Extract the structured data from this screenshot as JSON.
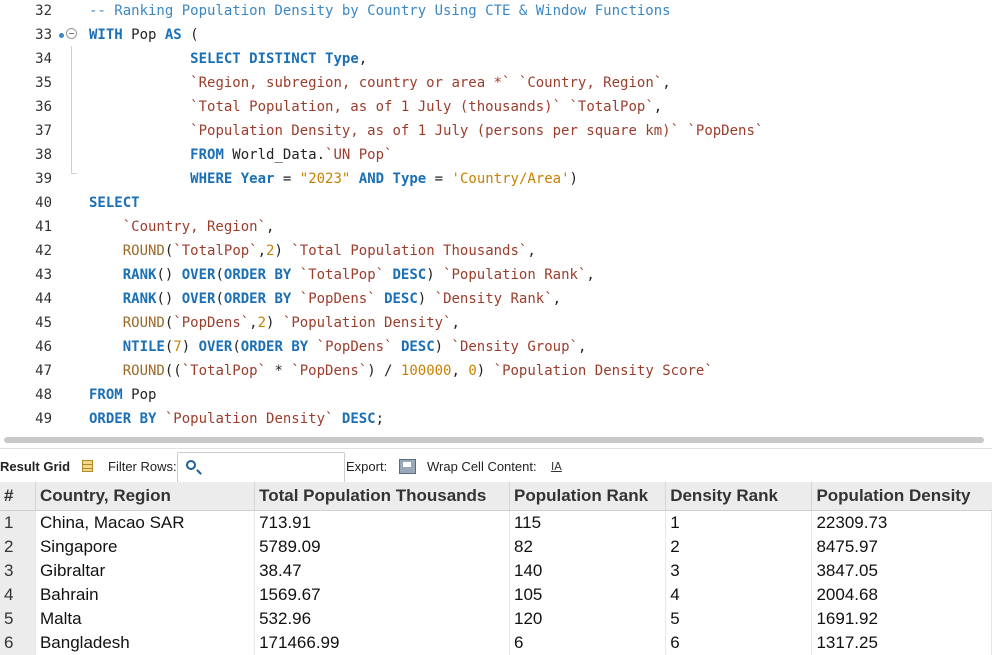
{
  "editor": {
    "lines": [
      {
        "n": "32",
        "tokens": [
          {
            "t": "-- Ranking Population Density by Country Using CTE & Window Functions",
            "c": "cm"
          }
        ]
      },
      {
        "n": "33",
        "tokens": [
          {
            "t": "WITH",
            "c": "kw"
          },
          {
            "t": " Pop ",
            "c": "op"
          },
          {
            "t": "AS",
            "c": "kw"
          },
          {
            "t": " (",
            "c": "op"
          }
        ]
      },
      {
        "n": "34",
        "tokens": [
          {
            "t": "            ",
            "c": "op"
          },
          {
            "t": "SELECT DISTINCT",
            "c": "kw"
          },
          {
            "t": " ",
            "c": "op"
          },
          {
            "t": "Type",
            "c": "kw"
          },
          {
            "t": ",",
            "c": "op"
          }
        ]
      },
      {
        "n": "35",
        "tokens": [
          {
            "t": "            ",
            "c": "op"
          },
          {
            "t": "`Region, subregion, country or area *`",
            "c": "bq"
          },
          {
            "t": " ",
            "c": "op"
          },
          {
            "t": "`Country, Region`",
            "c": "bq"
          },
          {
            "t": ",",
            "c": "op"
          }
        ]
      },
      {
        "n": "36",
        "tokens": [
          {
            "t": "            ",
            "c": "op"
          },
          {
            "t": "`Total Population, as of 1 July (thousands)`",
            "c": "bq"
          },
          {
            "t": " ",
            "c": "op"
          },
          {
            "t": "`TotalPop`",
            "c": "bq"
          },
          {
            "t": ",",
            "c": "op"
          }
        ]
      },
      {
        "n": "37",
        "tokens": [
          {
            "t": "            ",
            "c": "op"
          },
          {
            "t": "`Population Density, as of 1 July (persons per square km)`",
            "c": "bq"
          },
          {
            "t": " ",
            "c": "op"
          },
          {
            "t": "`PopDens`",
            "c": "bq"
          }
        ]
      },
      {
        "n": "38",
        "tokens": [
          {
            "t": "            ",
            "c": "op"
          },
          {
            "t": "FROM",
            "c": "kw"
          },
          {
            "t": " World_Data.",
            "c": "op"
          },
          {
            "t": "`UN Pop`",
            "c": "bq"
          }
        ]
      },
      {
        "n": "39",
        "tokens": [
          {
            "t": "            ",
            "c": "op"
          },
          {
            "t": "WHERE",
            "c": "kw"
          },
          {
            "t": " ",
            "c": "op"
          },
          {
            "t": "Year",
            "c": "kw"
          },
          {
            "t": " = ",
            "c": "op"
          },
          {
            "t": "\"2023\"",
            "c": "num"
          },
          {
            "t": " ",
            "c": "op"
          },
          {
            "t": "AND",
            "c": "kw"
          },
          {
            "t": " ",
            "c": "op"
          },
          {
            "t": "Type",
            "c": "kw"
          },
          {
            "t": " = ",
            "c": "op"
          },
          {
            "t": "'Country/Area'",
            "c": "num"
          },
          {
            "t": ")",
            "c": "op"
          }
        ]
      },
      {
        "n": "40",
        "tokens": [
          {
            "t": "SELECT",
            "c": "kw"
          }
        ]
      },
      {
        "n": "41",
        "tokens": [
          {
            "t": "    ",
            "c": "op"
          },
          {
            "t": "`Country, Region`",
            "c": "bq"
          },
          {
            "t": ",",
            "c": "op"
          }
        ]
      },
      {
        "n": "42",
        "tokens": [
          {
            "t": "    ",
            "c": "op"
          },
          {
            "t": "ROUND",
            "c": "round"
          },
          {
            "t": "(",
            "c": "op"
          },
          {
            "t": "`TotalPop`",
            "c": "bq"
          },
          {
            "t": ",",
            "c": "op"
          },
          {
            "t": "2",
            "c": "num"
          },
          {
            "t": ") ",
            "c": "op"
          },
          {
            "t": "`Total Population Thousands`",
            "c": "bq"
          },
          {
            "t": ",",
            "c": "op"
          }
        ]
      },
      {
        "n": "43",
        "tokens": [
          {
            "t": "    ",
            "c": "op"
          },
          {
            "t": "RANK",
            "c": "fn"
          },
          {
            "t": "() ",
            "c": "op"
          },
          {
            "t": "OVER",
            "c": "kw"
          },
          {
            "t": "(",
            "c": "op"
          },
          {
            "t": "ORDER BY",
            "c": "kw"
          },
          {
            "t": " ",
            "c": "op"
          },
          {
            "t": "`TotalPop`",
            "c": "bq"
          },
          {
            "t": " ",
            "c": "op"
          },
          {
            "t": "DESC",
            "c": "kw"
          },
          {
            "t": ") ",
            "c": "op"
          },
          {
            "t": "`Population Rank`",
            "c": "bq"
          },
          {
            "t": ",",
            "c": "op"
          }
        ]
      },
      {
        "n": "44",
        "tokens": [
          {
            "t": "    ",
            "c": "op"
          },
          {
            "t": "RANK",
            "c": "fn"
          },
          {
            "t": "() ",
            "c": "op"
          },
          {
            "t": "OVER",
            "c": "kw"
          },
          {
            "t": "(",
            "c": "op"
          },
          {
            "t": "ORDER BY",
            "c": "kw"
          },
          {
            "t": " ",
            "c": "op"
          },
          {
            "t": "`PopDens`",
            "c": "bq"
          },
          {
            "t": " ",
            "c": "op"
          },
          {
            "t": "DESC",
            "c": "kw"
          },
          {
            "t": ") ",
            "c": "op"
          },
          {
            "t": "`Density Rank`",
            "c": "bq"
          },
          {
            "t": ",",
            "c": "op"
          }
        ]
      },
      {
        "n": "45",
        "tokens": [
          {
            "t": "    ",
            "c": "op"
          },
          {
            "t": "ROUND",
            "c": "round"
          },
          {
            "t": "(",
            "c": "op"
          },
          {
            "t": "`PopDens`",
            "c": "bq"
          },
          {
            "t": ",",
            "c": "op"
          },
          {
            "t": "2",
            "c": "num"
          },
          {
            "t": ") ",
            "c": "op"
          },
          {
            "t": "`Population Density`",
            "c": "bq"
          },
          {
            "t": ",",
            "c": "op"
          }
        ]
      },
      {
        "n": "46",
        "tokens": [
          {
            "t": "    ",
            "c": "op"
          },
          {
            "t": "NTILE",
            "c": "fn"
          },
          {
            "t": "(",
            "c": "op"
          },
          {
            "t": "7",
            "c": "num"
          },
          {
            "t": ") ",
            "c": "op"
          },
          {
            "t": "OVER",
            "c": "kw"
          },
          {
            "t": "(",
            "c": "op"
          },
          {
            "t": "ORDER BY",
            "c": "kw"
          },
          {
            "t": " ",
            "c": "op"
          },
          {
            "t": "`PopDens`",
            "c": "bq"
          },
          {
            "t": " ",
            "c": "op"
          },
          {
            "t": "DESC",
            "c": "kw"
          },
          {
            "t": ") ",
            "c": "op"
          },
          {
            "t": "`Density Group`",
            "c": "bq"
          },
          {
            "t": ",",
            "c": "op"
          }
        ]
      },
      {
        "n": "47",
        "tokens": [
          {
            "t": "    ",
            "c": "op"
          },
          {
            "t": "ROUND",
            "c": "round"
          },
          {
            "t": "((",
            "c": "op"
          },
          {
            "t": "`TotalPop`",
            "c": "bq"
          },
          {
            "t": " * ",
            "c": "op"
          },
          {
            "t": "`PopDens`",
            "c": "bq"
          },
          {
            "t": ") / ",
            "c": "op"
          },
          {
            "t": "100000",
            "c": "num"
          },
          {
            "t": ", ",
            "c": "op"
          },
          {
            "t": "0",
            "c": "num"
          },
          {
            "t": ") ",
            "c": "op"
          },
          {
            "t": "`Population Density Score`",
            "c": "bq"
          }
        ]
      },
      {
        "n": "48",
        "tokens": [
          {
            "t": "FROM",
            "c": "kw"
          },
          {
            "t": " Pop",
            "c": "op"
          }
        ]
      },
      {
        "n": "49",
        "tokens": [
          {
            "t": "ORDER BY",
            "c": "kw"
          },
          {
            "t": " ",
            "c": "op"
          },
          {
            "t": "`Population Density`",
            "c": "bq"
          },
          {
            "t": " ",
            "c": "op"
          },
          {
            "t": "DESC",
            "c": "kw"
          },
          {
            "t": ";",
            "c": "op"
          }
        ]
      }
    ]
  },
  "toolbar": {
    "result_grid_label": "Result Grid",
    "filter_rows_label": "Filter Rows:",
    "filter_value": "",
    "export_label": "Export:",
    "wrap_label": "Wrap Cell Content:",
    "wrap_icon_text": "IA"
  },
  "grid": {
    "columns": [
      "#",
      "Country, Region",
      "Total Population Thousands",
      "Population Rank",
      "Density Rank",
      "Population Density"
    ],
    "rows": [
      [
        "1",
        "China, Macao SAR",
        "713.91",
        "115",
        "1",
        "22309.73"
      ],
      [
        "2",
        "Singapore",
        "5789.09",
        "82",
        "2",
        "8475.97"
      ],
      [
        "3",
        "Gibraltar",
        "38.47",
        "140",
        "3",
        "3847.05"
      ],
      [
        "4",
        "Bahrain",
        "1569.67",
        "105",
        "4",
        "2004.68"
      ],
      [
        "5",
        "Malta",
        "532.96",
        "120",
        "5",
        "1691.92"
      ],
      [
        "6",
        "Bangladesh",
        "171466.99",
        "6",
        "6",
        "1317.25"
      ]
    ]
  }
}
